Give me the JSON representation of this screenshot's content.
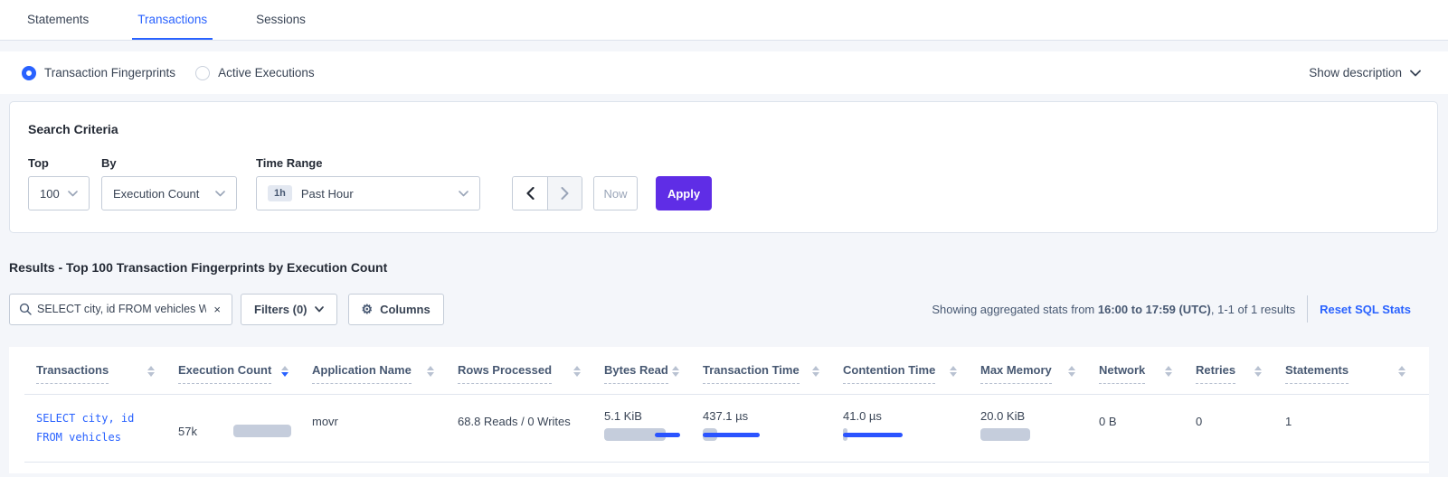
{
  "colors": {
    "accent_blue": "#2962ff",
    "accent_purple": "#5f2de6",
    "bar_gray": "#c5cddc",
    "bar_blue": "#2b54ff"
  },
  "tabs": [
    {
      "label": "Statements",
      "active": false
    },
    {
      "label": "Transactions",
      "active": true
    },
    {
      "label": "Sessions",
      "active": false
    }
  ],
  "view_toggle": {
    "options": [
      {
        "label": "Transaction Fingerprints",
        "selected": true
      },
      {
        "label": "Active Executions",
        "selected": false
      }
    ],
    "show_description_label": "Show description"
  },
  "search_criteria": {
    "title": "Search Criteria",
    "top_label": "Top",
    "top_value": "100",
    "by_label": "By",
    "by_value": "Execution Count",
    "time_range_label": "Time Range",
    "time_range_badge": "1h",
    "time_range_value": "Past Hour",
    "now_label": "Now",
    "apply_label": "Apply"
  },
  "results": {
    "heading": "Results - Top 100 Transaction Fingerprints by Execution Count",
    "search_value": "SELECT city, id FROM vehicles WHE",
    "clear_label": "×",
    "filters_label": "Filters (0)",
    "columns_label": "Columns",
    "stats_prefix": "Showing aggregated stats from ",
    "stats_range": "16:00 to 17:59 (UTC)",
    "stats_suffix": ", 1-1 of 1 results",
    "reset_link": "Reset SQL Stats"
  },
  "table": {
    "columns": [
      {
        "label": "Transactions",
        "sort": "none"
      },
      {
        "label": "Execution Count",
        "sort": "desc"
      },
      {
        "label": "Application Name",
        "sort": "none"
      },
      {
        "label": "Rows Processed",
        "sort": "none"
      },
      {
        "label": "Bytes Read",
        "sort": "none"
      },
      {
        "label": "Transaction Time",
        "sort": "none"
      },
      {
        "label": "Contention Time",
        "sort": "none"
      },
      {
        "label": "Max Memory",
        "sort": "none"
      },
      {
        "label": "Network",
        "sort": "none"
      },
      {
        "label": "Retries",
        "sort": "none"
      },
      {
        "label": "Statements",
        "sort": "none"
      }
    ],
    "row": {
      "transaction_line1": "SELECT city, id",
      "transaction_line2": "FROM vehicles",
      "execution_count": "57k",
      "application_name": "movr",
      "rows_processed": "68.8 Reads / 0 Writes",
      "bytes_read": "5.1 KiB",
      "transaction_time": "437.1 µs",
      "contention_time": "41.0 µs",
      "max_memory": "20.0 KiB",
      "network": "0 B",
      "retries": "0",
      "statements": "1",
      "bars": {
        "execution_count": {
          "gray": 64,
          "blue": null
        },
        "bytes_read": {
          "gray": 68,
          "blue": [
            56,
            84
          ]
        },
        "transaction_time": {
          "gray": 16,
          "blue": [
            0,
            63
          ]
        },
        "contention_time": {
          "gray": 5,
          "blue": [
            0,
            66
          ]
        },
        "max_memory": {
          "gray": 55,
          "blue": null
        }
      }
    }
  }
}
